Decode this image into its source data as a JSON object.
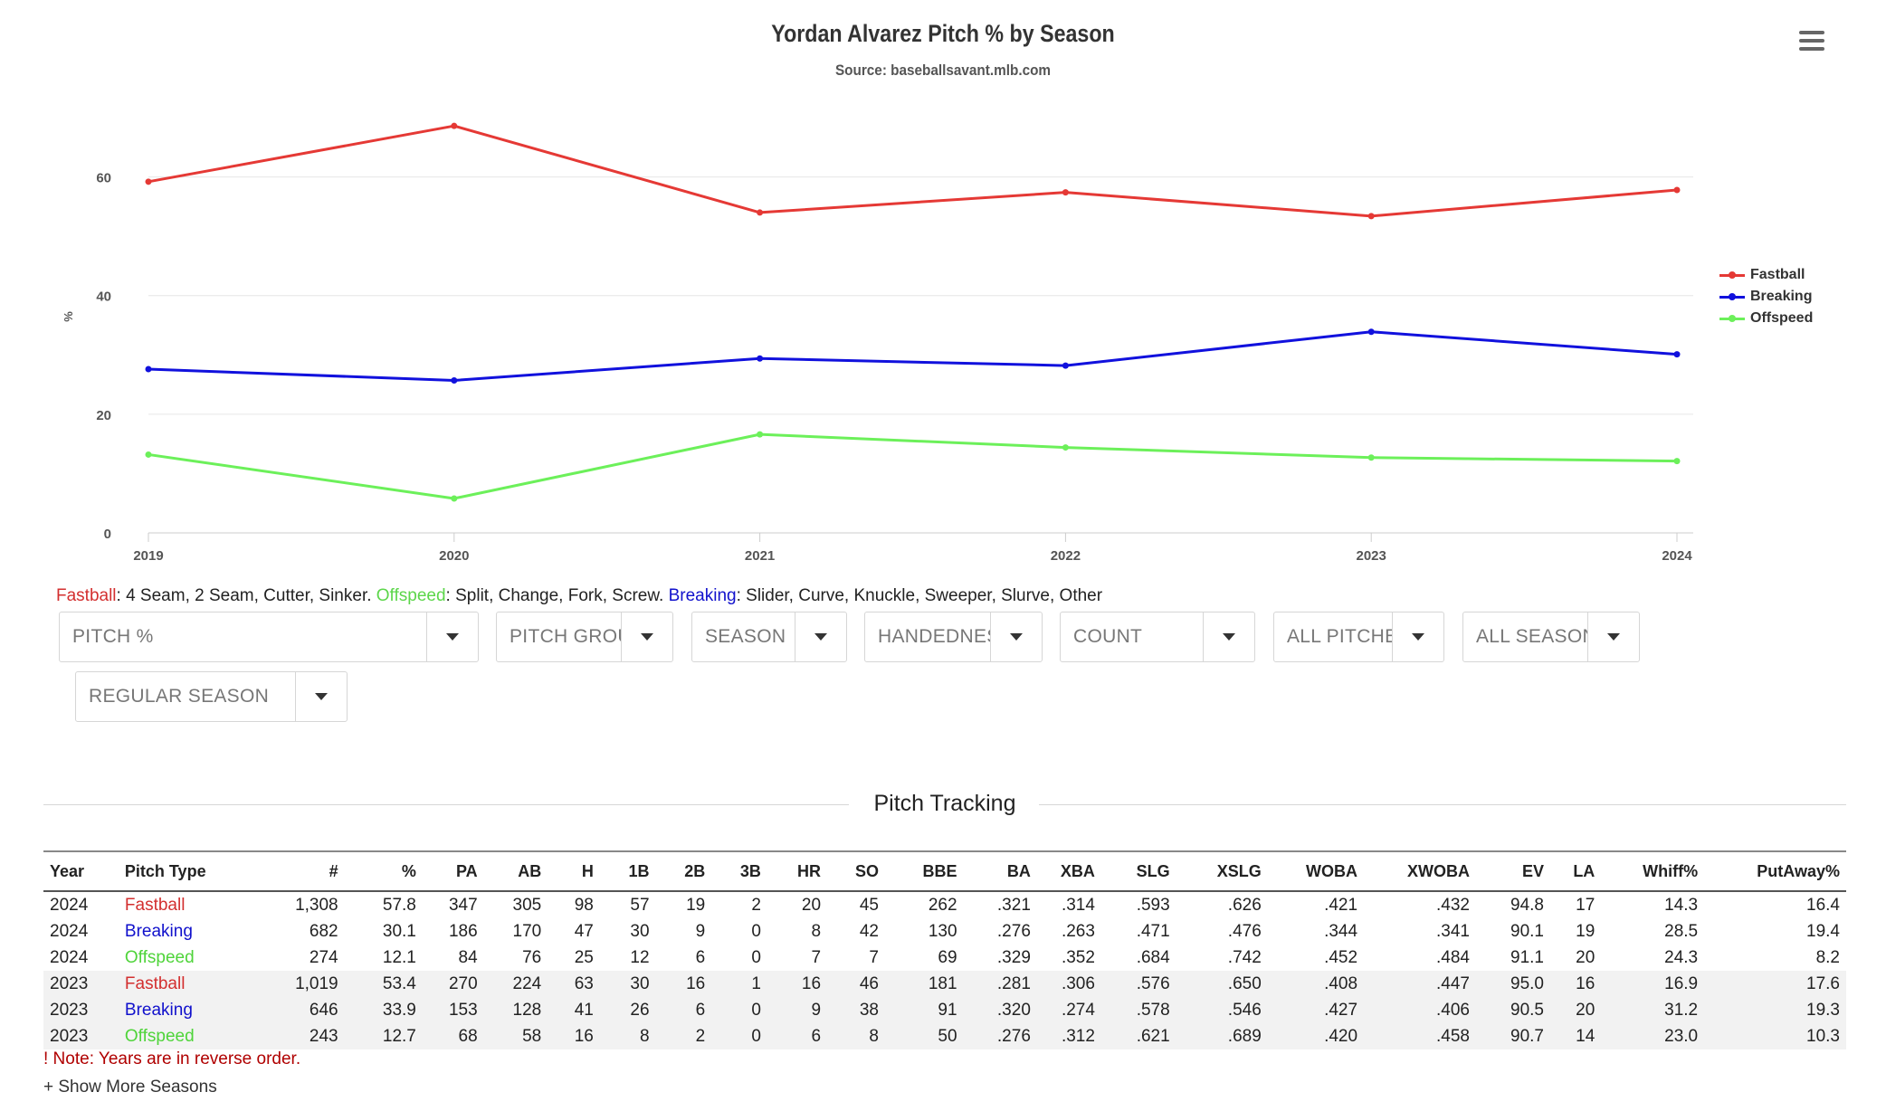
{
  "colors": {
    "fastball": "#e53935",
    "breaking": "#1111dd",
    "offspeed": "#6cf05a"
  },
  "chart_data": {
    "type": "line",
    "title": "Yordan Alvarez Pitch % by Season",
    "subtitle": "Source: baseballsavant.mlb.com",
    "ylabel": "%",
    "xlabel": "",
    "categories": [
      "2019",
      "2020",
      "2021",
      "2022",
      "2023",
      "2024"
    ],
    "ylim": [
      0,
      70
    ],
    "yticks": [
      0,
      20,
      40,
      60
    ],
    "grid": true,
    "legend_position": "right",
    "series": [
      {
        "name": "Fastball",
        "color": "#e53935",
        "values": [
          59.2,
          68.6,
          54.0,
          57.4,
          53.4,
          57.8
        ]
      },
      {
        "name": "Breaking",
        "color": "#1111dd",
        "values": [
          27.6,
          25.7,
          29.4,
          28.2,
          33.9,
          30.1
        ]
      },
      {
        "name": "Offspeed",
        "color": "#6cf05a",
        "values": [
          13.2,
          5.8,
          16.6,
          14.4,
          12.7,
          12.1
        ]
      }
    ]
  },
  "pitch_key": {
    "fastball_label": "Fastball",
    "fastball_desc": ": 4 Seam, 2 Seam, Cutter, Sinker. ",
    "offspeed_label": "Offspeed",
    "offspeed_desc": ": Split, Change, Fork, Screw. ",
    "breaking_label": "Breaking",
    "breaking_desc": ": Slider, Curve, Knuckle, Sweeper, Slurve, Other"
  },
  "filters": {
    "metric": "PITCH %",
    "pitch_group": "PITCH GROUP",
    "season": "SEASON",
    "handedness": "HANDEDNESS",
    "count": "COUNT",
    "pitches": "ALL PITCHES",
    "seasons": "ALL SEASONS",
    "season_type": "REGULAR SEASON"
  },
  "section": {
    "title": "Pitch Tracking"
  },
  "table": {
    "columns": [
      "Year",
      "Pitch Type",
      "#",
      "%",
      "PA",
      "AB",
      "H",
      "1B",
      "2B",
      "3B",
      "HR",
      "SO",
      "BBE",
      "BA",
      "XBA",
      "SLG",
      "XSLG",
      "WOBA",
      "XWOBA",
      "EV",
      "LA",
      "Whiff%",
      "PutAway%"
    ],
    "rows": [
      [
        "2024",
        "Fastball",
        "1,308",
        "57.8",
        "347",
        "305",
        "98",
        "57",
        "19",
        "2",
        "20",
        "45",
        "262",
        ".321",
        ".314",
        ".593",
        ".626",
        ".421",
        ".432",
        "94.8",
        "17",
        "14.3",
        "16.4"
      ],
      [
        "2024",
        "Breaking",
        "682",
        "30.1",
        "186",
        "170",
        "47",
        "30",
        "9",
        "0",
        "8",
        "42",
        "130",
        ".276",
        ".263",
        ".471",
        ".476",
        ".344",
        ".341",
        "90.1",
        "19",
        "28.5",
        "19.4"
      ],
      [
        "2024",
        "Offspeed",
        "274",
        "12.1",
        "84",
        "76",
        "25",
        "12",
        "6",
        "0",
        "7",
        "7",
        "69",
        ".329",
        ".352",
        ".684",
        ".742",
        ".452",
        ".484",
        "91.1",
        "20",
        "24.3",
        "8.2"
      ],
      [
        "2023",
        "Fastball",
        "1,019",
        "53.4",
        "270",
        "224",
        "63",
        "30",
        "16",
        "1",
        "16",
        "46",
        "181",
        ".281",
        ".306",
        ".576",
        ".650",
        ".408",
        ".447",
        "95.0",
        "16",
        "16.9",
        "17.6"
      ],
      [
        "2023",
        "Breaking",
        "646",
        "33.9",
        "153",
        "128",
        "41",
        "26",
        "6",
        "0",
        "9",
        "38",
        "91",
        ".320",
        ".274",
        ".578",
        ".546",
        ".427",
        ".406",
        "90.5",
        "20",
        "31.2",
        "19.3"
      ],
      [
        "2023",
        "Offspeed",
        "243",
        "12.7",
        "68",
        "58",
        "16",
        "8",
        "2",
        "0",
        "6",
        "8",
        "50",
        ".276",
        ".312",
        ".621",
        ".689",
        ".420",
        ".458",
        "90.7",
        "14",
        "23.0",
        "10.3"
      ]
    ]
  },
  "note": "! Note: Years are in reverse order.",
  "show_more": "+ Show More Seasons"
}
